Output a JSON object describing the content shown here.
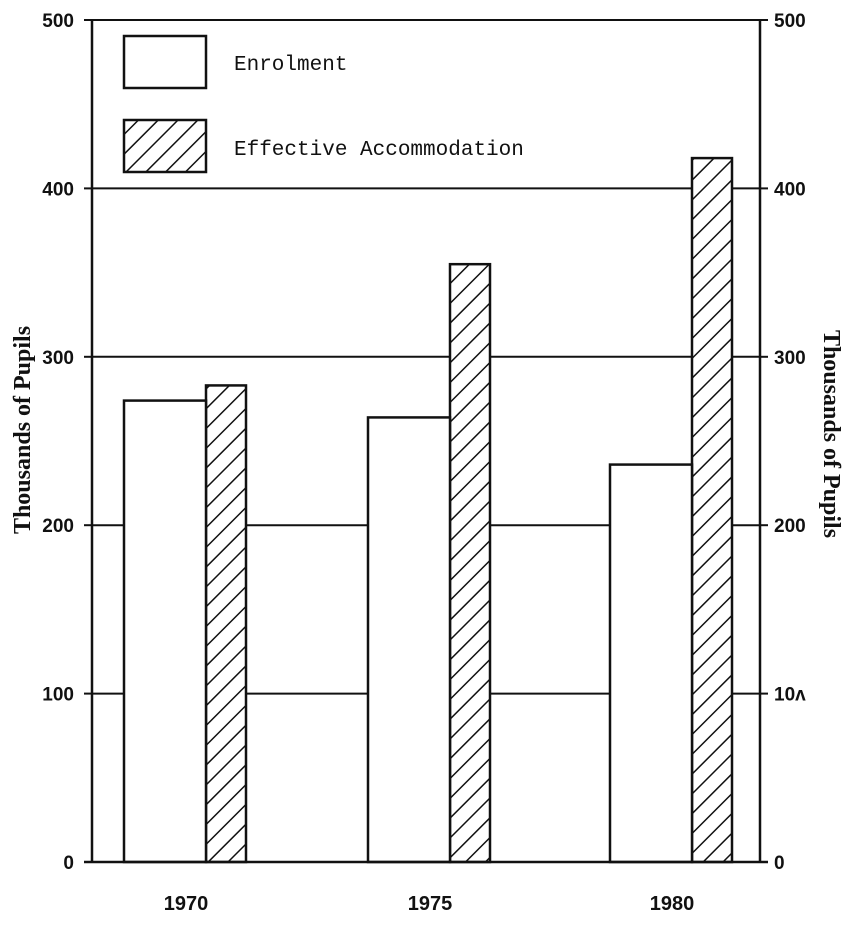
{
  "chart_data": {
    "type": "bar",
    "categories": [
      "1970",
      "1975",
      "1980"
    ],
    "series": [
      {
        "name": "Enrolment",
        "values": [
          274,
          264,
          236
        ],
        "fill": "plain"
      },
      {
        "name": "Effective Accommodation",
        "values": [
          283,
          355,
          418
        ],
        "fill": "hatched"
      }
    ],
    "ylim": [
      0,
      500
    ],
    "yticks": [
      "0",
      "100",
      "200",
      "300",
      "400",
      "500"
    ],
    "yticks_right": [
      "0",
      "10ʌ",
      "200",
      "300",
      "400",
      "500"
    ],
    "ylabel": "Thousands of Pupils",
    "ylabel_right": "Thousands of Pupils",
    "grid": true,
    "legend_position": "top-left",
    "colors": {
      "stroke": "#111111",
      "background": "#ffffff"
    }
  }
}
